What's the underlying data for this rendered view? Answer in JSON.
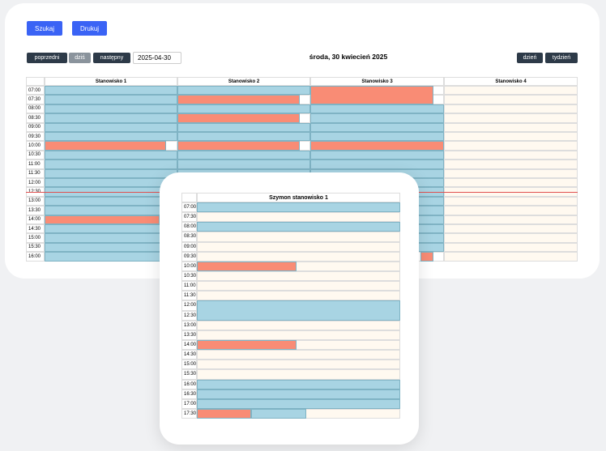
{
  "toolbar": {
    "search": "Szukaj",
    "print": "Drukuj"
  },
  "nav": {
    "prev": "poprzedni",
    "today": "dziś",
    "next": "następny",
    "date": "2025-04-30",
    "title": "środa, 30 kwiecień 2025",
    "day": "dzień",
    "week": "tydzień"
  },
  "calendar": {
    "columns": [
      "Stanowisko 1",
      "Stanowisko 2",
      "Stanowisko 3",
      "Stanowisko 4"
    ],
    "times": [
      "07:00",
      "07:30",
      "08:00",
      "08:30",
      "09:00",
      "09:30",
      "10:00",
      "10:30",
      "11:00",
      "11:30",
      "12:00",
      "12:30",
      "13:00",
      "13:30",
      "14:00",
      "14:30",
      "15:00",
      "15:30",
      "16:00"
    ]
  },
  "popup": {
    "title": "Szymon stanowisko 1",
    "times": [
      "07:00",
      "07:30",
      "08:00",
      "08:30",
      "09:00",
      "09:30",
      "10:00",
      "10:30",
      "11:00",
      "11:30",
      "12:00",
      "12:30",
      "13:00",
      "13:30",
      "14:00",
      "14:30",
      "15:00",
      "15:30",
      "16:00",
      "16:30",
      "17:00",
      "17:30"
    ]
  }
}
